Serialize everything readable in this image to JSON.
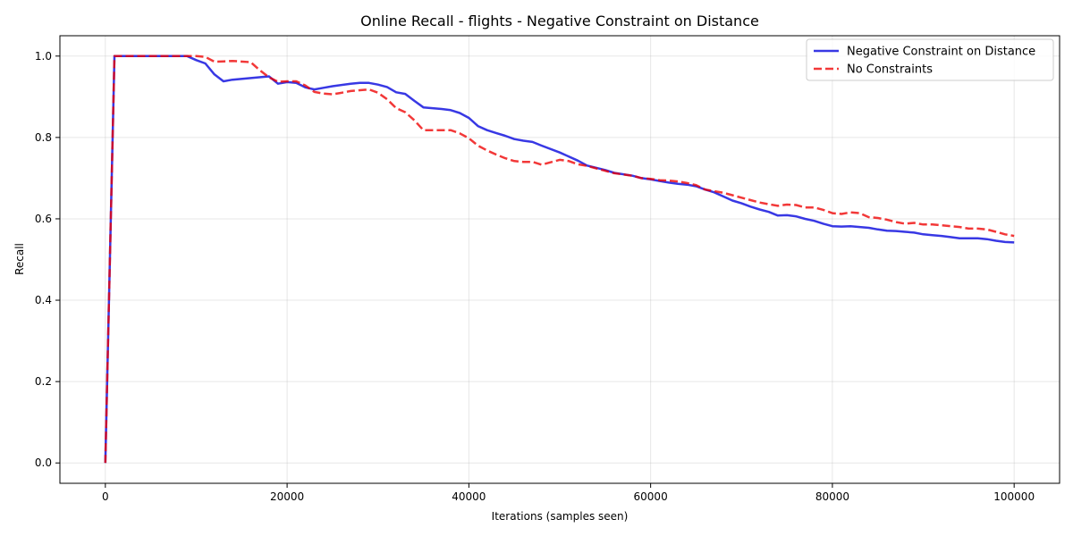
{
  "chart_data": {
    "type": "line",
    "title": "Online Recall - flights - Negative Constraint on Distance",
    "xlabel": "Iterations (samples seen)",
    "ylabel": "Recall",
    "xlim": [
      -5000,
      105000
    ],
    "ylim": [
      -0.05,
      1.05
    ],
    "xticks": [
      0,
      20000,
      40000,
      60000,
      80000,
      100000
    ],
    "yticks": [
      0.0,
      0.2,
      0.4,
      0.6,
      0.8,
      1.0
    ],
    "xtick_labels": [
      "0",
      "20000",
      "40000",
      "60000",
      "80000",
      "100000"
    ],
    "ytick_labels": [
      "0.0",
      "0.2",
      "0.4",
      "0.6",
      "0.8",
      "1.0"
    ],
    "grid": true,
    "legend_position": "top-right",
    "series": [
      {
        "name": "Negative Constraint on Distance",
        "color": "#0000dd",
        "style": "solid",
        "x": [
          0,
          1000,
          2000,
          3000,
          5000,
          7000,
          9000,
          10000,
          11000,
          12000,
          13000,
          14000,
          16000,
          18000,
          19000,
          20000,
          21000,
          22000,
          23000,
          24000,
          25000,
          27000,
          28000,
          29000,
          30000,
          31000,
          32000,
          33000,
          34000,
          35000,
          36000,
          37000,
          38000,
          39000,
          40000,
          41000,
          42000,
          43000,
          44000,
          45000,
          46000,
          47000,
          48000,
          50000,
          52000,
          53000,
          55000,
          56000,
          58000,
          59000,
          60000,
          61000,
          62000,
          63000,
          64000,
          65000,
          66000,
          67000,
          68000,
          69000,
          70000,
          71000,
          72000,
          73000,
          74000,
          75000,
          76000,
          77000,
          78000,
          79000,
          80000,
          81000,
          82000,
          83000,
          84000,
          85000,
          86000,
          87000,
          88000,
          89000,
          90000,
          91000,
          92000,
          93000,
          94000,
          95000,
          96000,
          97000,
          98000,
          99000,
          100000
        ],
        "y": [
          0.0,
          1.0,
          1.0,
          1.0,
          1.0,
          1.0,
          1.0,
          0.99,
          0.982,
          0.955,
          0.938,
          0.942,
          0.946,
          0.95,
          0.932,
          0.936,
          0.934,
          0.923,
          0.918,
          0.922,
          0.926,
          0.932,
          0.934,
          0.934,
          0.93,
          0.924,
          0.911,
          0.907,
          0.89,
          0.874,
          0.872,
          0.87,
          0.867,
          0.86,
          0.848,
          0.828,
          0.818,
          0.811,
          0.804,
          0.796,
          0.792,
          0.789,
          0.78,
          0.763,
          0.743,
          0.731,
          0.72,
          0.713,
          0.706,
          0.7,
          0.697,
          0.693,
          0.689,
          0.686,
          0.684,
          0.68,
          0.672,
          0.665,
          0.655,
          0.645,
          0.638,
          0.63,
          0.623,
          0.617,
          0.608,
          0.609,
          0.606,
          0.6,
          0.595,
          0.588,
          0.582,
          0.581,
          0.582,
          0.58,
          0.578,
          0.574,
          0.571,
          0.57,
          0.568,
          0.566,
          0.562,
          0.56,
          0.558,
          0.555,
          0.552,
          0.552,
          0.552,
          0.55,
          0.546,
          0.543,
          0.542
        ]
      },
      {
        "name": "No Constraints",
        "color": "#ee0000",
        "style": "dashed",
        "x": [
          0,
          1000,
          2000,
          3000,
          5000,
          7000,
          9000,
          10000,
          11000,
          12000,
          13000,
          14000,
          16000,
          17000,
          18000,
          19000,
          20000,
          21000,
          22000,
          23000,
          24000,
          25000,
          26000,
          27000,
          28000,
          29000,
          30000,
          31000,
          32000,
          33000,
          34000,
          35000,
          36000,
          37000,
          38000,
          39000,
          40000,
          41000,
          42000,
          43000,
          44000,
          45000,
          46000,
          47000,
          48000,
          50000,
          51000,
          52000,
          53000,
          55000,
          56000,
          58000,
          59000,
          60000,
          61000,
          62000,
          63000,
          64000,
          65000,
          66000,
          67000,
          68000,
          69000,
          70000,
          71000,
          72000,
          73000,
          74000,
          75000,
          76000,
          77000,
          78000,
          79000,
          80000,
          81000,
          82000,
          83000,
          84000,
          85000,
          86000,
          87000,
          88000,
          89000,
          90000,
          91000,
          92000,
          93000,
          94000,
          95000,
          96000,
          97000,
          98000,
          99000,
          100000
        ],
        "y": [
          0.0,
          1.0,
          1.0,
          1.0,
          1.0,
          1.0,
          1.0,
          1.0,
          0.998,
          0.986,
          0.987,
          0.988,
          0.985,
          0.965,
          0.948,
          0.937,
          0.938,
          0.938,
          0.928,
          0.912,
          0.908,
          0.906,
          0.91,
          0.914,
          0.916,
          0.918,
          0.91,
          0.894,
          0.872,
          0.862,
          0.842,
          0.818,
          0.818,
          0.818,
          0.818,
          0.81,
          0.798,
          0.78,
          0.768,
          0.758,
          0.749,
          0.742,
          0.74,
          0.74,
          0.733,
          0.745,
          0.742,
          0.734,
          0.73,
          0.718,
          0.712,
          0.706,
          0.7,
          0.698,
          0.695,
          0.694,
          0.692,
          0.688,
          0.683,
          0.672,
          0.668,
          0.664,
          0.658,
          0.652,
          0.646,
          0.64,
          0.636,
          0.632,
          0.635,
          0.634,
          0.628,
          0.628,
          0.622,
          0.614,
          0.612,
          0.616,
          0.614,
          0.604,
          0.602,
          0.598,
          0.592,
          0.588,
          0.59,
          0.586,
          0.586,
          0.584,
          0.582,
          0.58,
          0.576,
          0.576,
          0.574,
          0.568,
          0.562,
          0.558
        ]
      }
    ]
  }
}
